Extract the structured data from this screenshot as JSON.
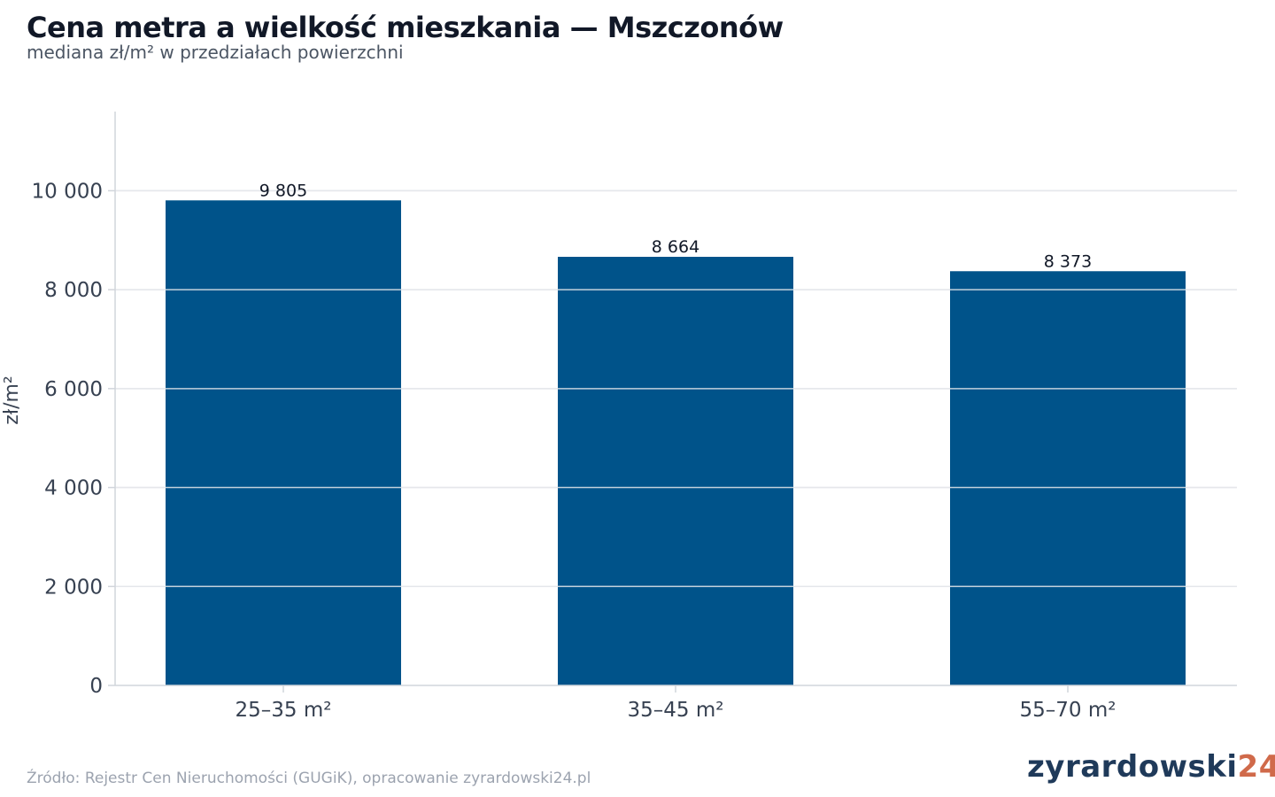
{
  "header": {
    "title": "Cena metra a wielkość mieszkania — Mszczonów",
    "subtitle": "mediana zł/m² w przedziałach powierzchni"
  },
  "footer": {
    "source": "Źródło: Rejestr Cen Nieruchomości (GUGiK), opracowanie zyrardowski24.pl",
    "logo_main": "zyrardowski",
    "logo_num": "24"
  },
  "colors": {
    "bar": "#00538A",
    "grid": "#e5e7eb",
    "axis": "#d1d5db",
    "tick_text": "#374151",
    "label_text": "#111827",
    "logo_main": "#1f3a5a",
    "logo_accent": "#d06a4a"
  },
  "chart_data": {
    "type": "bar",
    "categories": [
      "25–35 m²",
      "35–45 m²",
      "55–70 m²"
    ],
    "values": [
      9805,
      8664,
      8373
    ],
    "value_labels": [
      "9 805",
      "8 664",
      "8 373"
    ],
    "ylabel": "zł/m²",
    "xlabel": "",
    "ylim": [
      0,
      11600
    ],
    "yticks": [
      0,
      2000,
      4000,
      6000,
      8000,
      10000
    ],
    "ytick_labels": [
      "0",
      "2 000",
      "4 000",
      "6 000",
      "8 000",
      "10 000"
    ],
    "grid": true,
    "legend": "none"
  }
}
